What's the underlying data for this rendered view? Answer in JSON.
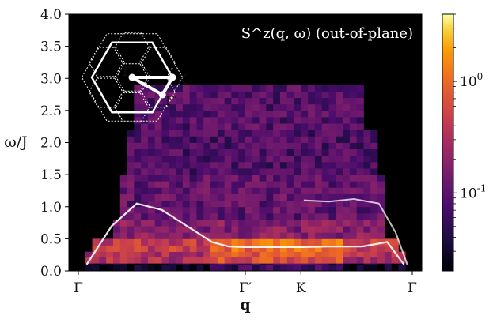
{
  "chart_data": {
    "type": "heatmap",
    "title": "S^z(q, ω) (out-of-plane)",
    "xlabel": "q",
    "ylabel": "ω/J",
    "ylim": [
      0.0,
      4.0
    ],
    "y_ticks": [
      "0.0",
      "0.5",
      "1.0",
      "1.5",
      "2.0",
      "2.5",
      "3.0",
      "3.5",
      "4.0"
    ],
    "x_ticks": [
      {
        "label": "Γ",
        "pos": 0.0
      },
      {
        "label": "Γ′",
        "pos": 1.0
      },
      {
        "label": "K",
        "pos": 1.333
      },
      {
        "label": "Γ",
        "pos": 2.0
      }
    ],
    "x_range": [
      0.0,
      2.0
    ],
    "color_scale": "log",
    "colormap": "inferno",
    "colorbar_ticks": [
      {
        "label": "10^0",
        "value": 1.0
      },
      {
        "label": "10^-1",
        "value": 0.1
      }
    ],
    "colorbar_range": [
      0.02,
      4.0
    ],
    "intensity_bands": [
      {
        "omega": [
          0.0,
          0.12
        ],
        "q_range": [
          0.05,
          1.95
        ],
        "intensity": 0.03
      },
      {
        "omega": [
          0.12,
          0.3
        ],
        "q_range": [
          0.05,
          1.95
        ],
        "intensity": 0.35
      },
      {
        "omega": [
          0.3,
          0.5
        ],
        "q_range": [
          0.1,
          1.9
        ],
        "intensity": 0.5
      },
      {
        "omega": [
          0.5,
          0.8
        ],
        "q_range": [
          0.2,
          1.85
        ],
        "intensity": 0.2
      },
      {
        "omega": [
          0.8,
          1.5
        ],
        "q_range": [
          0.25,
          1.85
        ],
        "intensity": 0.12
      },
      {
        "omega": [
          1.5,
          2.2
        ],
        "q_range": [
          0.3,
          1.8
        ],
        "intensity": 0.09
      },
      {
        "omega": [
          2.2,
          2.9
        ],
        "q_range": [
          0.35,
          1.7
        ],
        "intensity": 0.1
      }
    ],
    "dispersion_curve": {
      "color": "#ffffff",
      "x": [
        0.05,
        0.2,
        0.35,
        0.5,
        0.65,
        0.8,
        0.9,
        1.0,
        1.2,
        1.333,
        1.5,
        1.7,
        1.85,
        1.95
      ],
      "y": [
        0.1,
        0.7,
        1.05,
        0.95,
        0.7,
        0.45,
        0.38,
        0.37,
        0.37,
        0.37,
        0.38,
        0.38,
        0.45,
        0.1
      ],
      "upper_branch": {
        "x": [
          1.35,
          1.5,
          1.65,
          1.8,
          1.9,
          1.97
        ],
        "y": [
          1.1,
          1.08,
          1.12,
          1.05,
          0.6,
          0.1
        ]
      }
    },
    "inset": {
      "description_labels": [
        "Γ",
        "K",
        "Γ′"
      ],
      "path_color": "#ffffff",
      "hexagon_color": "#ffffff"
    },
    "title_color": "#ffffff",
    "background_color": "#000000"
  }
}
